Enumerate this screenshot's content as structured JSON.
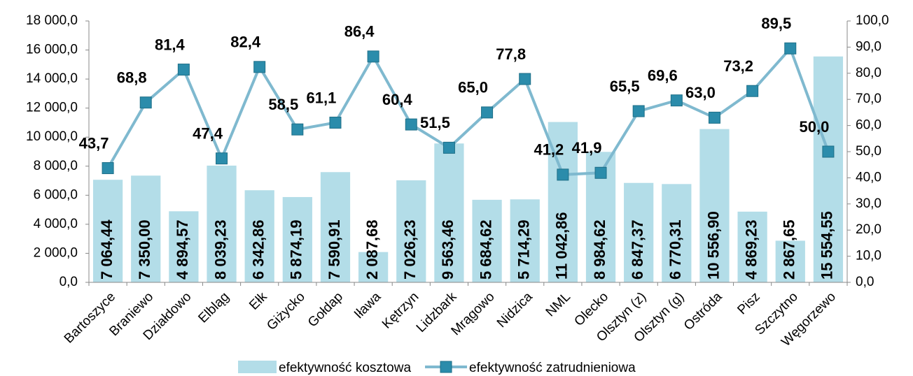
{
  "chart_data": {
    "type": "bar-line",
    "categories": [
      "Bartoszyce",
      "Braniewo",
      "Działdowo",
      "Elbląg",
      "Ełk",
      "Giżycko",
      "Gołdap",
      "Iława",
      "Kętrzyn",
      "Lidzbark",
      "Mrągowo",
      "Nidzica",
      "NML",
      "Olecko",
      "Olsztyn (z)",
      "Olsztyn (g)",
      "Ostróda",
      "Pisz",
      "Szczytno",
      "Węgorzewo"
    ],
    "series": [
      {
        "name": "efektywność kosztowa",
        "type": "bar",
        "color": "#b3dde8",
        "values": [
          7064.44,
          7350.0,
          4894.57,
          8039.23,
          6342.86,
          5874.19,
          7590.91,
          2087.68,
          7026.23,
          9563.46,
          5684.62,
          5714.29,
          11042.86,
          8984.62,
          6847.37,
          6770.31,
          10556.9,
          4869.23,
          2867.65,
          15554.55
        ],
        "value_labels": [
          "7 064,44",
          "7 350,00",
          "4 894,57",
          "8 039,23",
          "6 342,86",
          "5 874,19",
          "7 590,91",
          "2 087,68",
          "7 026,23",
          "9 563,46",
          "5 684,62",
          "5 714,29",
          "11 042,86",
          "8 984,62",
          "6 847,37",
          "6 770,31",
          "10 556,90",
          "4 869,23",
          "2 867,65",
          "15 554,55"
        ]
      },
      {
        "name": "efektywność zatrudnieniowa",
        "type": "line",
        "axis": "y2",
        "color": "#7fb9cf",
        "marker_color": "#2b8cab",
        "values": [
          43.7,
          68.8,
          81.4,
          47.4,
          82.4,
          58.5,
          61.1,
          86.4,
          60.4,
          51.5,
          65.0,
          77.8,
          41.2,
          41.9,
          65.5,
          69.6,
          63.0,
          73.2,
          89.5,
          50.0
        ],
        "value_labels": [
          "43,7",
          "68,8",
          "81,4",
          "47,4",
          "82,4",
          "58,5",
          "61,1",
          "86,4",
          "60,4",
          "51,5",
          "65,0",
          "77,8",
          "41,2",
          "41,9",
          "65,5",
          "69,6",
          "63,0",
          "73,2",
          "89,5",
          "50,0"
        ]
      }
    ],
    "ylim": [
      0,
      18000
    ],
    "yticks": [
      {
        "value": 0,
        "label": "0,0"
      },
      {
        "value": 2000,
        "label": "2 000,0"
      },
      {
        "value": 4000,
        "label": "4 000,0"
      },
      {
        "value": 6000,
        "label": "6 000,0"
      },
      {
        "value": 8000,
        "label": "8 000,0"
      },
      {
        "value": 10000,
        "label": "10 000,0"
      },
      {
        "value": 12000,
        "label": "12 000,0"
      },
      {
        "value": 14000,
        "label": "14 000,0"
      },
      {
        "value": 16000,
        "label": "16 000,0"
      },
      {
        "value": 18000,
        "label": "18 000,0"
      }
    ],
    "y2lim": [
      0,
      100
    ],
    "y2ticks": [
      {
        "value": 0,
        "label": "0,0"
      },
      {
        "value": 10,
        "label": "10,0"
      },
      {
        "value": 20,
        "label": "20,0"
      },
      {
        "value": 30,
        "label": "30,0"
      },
      {
        "value": 40,
        "label": "40,0"
      },
      {
        "value": 50,
        "label": "50,0"
      },
      {
        "value": 60,
        "label": "60,0"
      },
      {
        "value": 70,
        "label": "70,0"
      },
      {
        "value": 80,
        "label": "80,0"
      },
      {
        "value": 90,
        "label": "90,0"
      },
      {
        "value": 100,
        "label": "100,0"
      }
    ],
    "legend": "bottom"
  }
}
